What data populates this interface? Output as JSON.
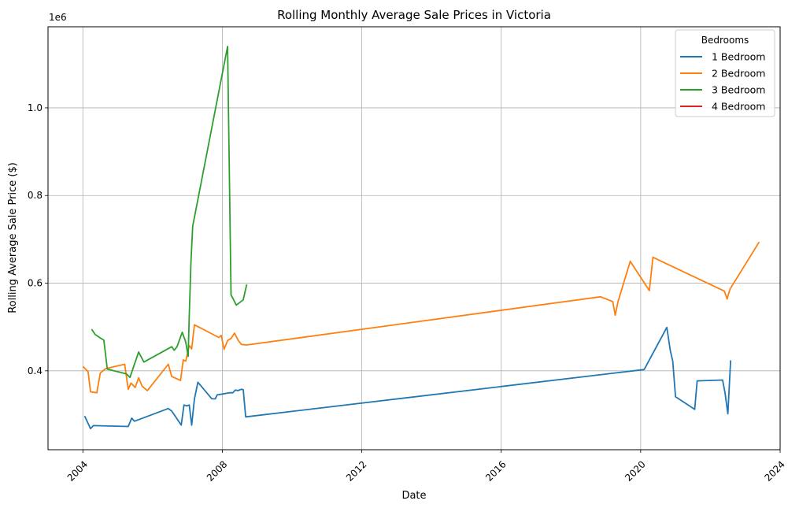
{
  "chart_data": {
    "type": "line",
    "title": "Rolling Monthly Average Sale Prices in Victoria",
    "xlabel": "Date",
    "ylabel": "Rolling Average Sale Price ($)",
    "y_multiplier_label": "1e6",
    "xlim": [
      2003.0,
      2024.0
    ],
    "ylim": [
      220000,
      1185000
    ],
    "x_ticks": [
      2004,
      2008,
      2012,
      2016,
      2020,
      2024
    ],
    "x_tick_labels": [
      "2004",
      "2008",
      "2012",
      "2016",
      "2020",
      "2024"
    ],
    "y_ticks": [
      400000,
      600000,
      800000,
      1000000
    ],
    "y_tick_labels": [
      "0.4",
      "0.6",
      "0.8",
      "1.0"
    ],
    "grid": true,
    "legend_title": "Bedrooms",
    "legend_position": "upper right",
    "series": [
      {
        "name": "1 Bedroom",
        "color": "#1f77b4",
        "x": [
          2004.05,
          2004.22,
          2004.3,
          2005.3,
          2005.4,
          2005.48,
          2006.45,
          2006.55,
          2006.67,
          2006.82,
          2006.9,
          2006.98,
          2007.05,
          2007.12,
          2007.2,
          2007.3,
          2007.7,
          2007.8,
          2007.85,
          2008.0,
          2008.2,
          2008.3,
          2008.37,
          2008.45,
          2008.55,
          2008.6,
          2008.67,
          2020.1,
          2020.75,
          2020.85,
          2020.92,
          2021.0,
          2021.55,
          2021.62,
          2022.35,
          2022.42,
          2022.5,
          2022.58
        ],
        "values": [
          297000,
          268000,
          275000,
          273000,
          292000,
          285000,
          314000,
          308000,
          294000,
          276000,
          322000,
          320000,
          322000,
          276000,
          336000,
          374000,
          336000,
          336000,
          345000,
          347000,
          350000,
          350000,
          356000,
          355000,
          358000,
          357000,
          295000,
          403000,
          499000,
          446000,
          422000,
          341000,
          312000,
          377000,
          379000,
          350000,
          302000,
          424000
        ]
      },
      {
        "name": "2 Bedroom",
        "color": "#ff7f0e",
        "x": [
          2004.0,
          2004.15,
          2004.22,
          2004.4,
          2004.5,
          2004.65,
          2005.2,
          2005.3,
          2005.38,
          2005.5,
          2005.6,
          2005.7,
          2005.85,
          2006.45,
          2006.55,
          2006.8,
          2006.88,
          2006.95,
          2007.05,
          2007.12,
          2007.2,
          2007.9,
          2007.97,
          2008.05,
          2008.15,
          2008.25,
          2008.35,
          2008.45,
          2008.55,
          2008.7,
          2018.85,
          2019.2,
          2019.27,
          2019.35,
          2019.7,
          2020.25,
          2020.35,
          2022.4,
          2022.48,
          2022.56,
          2023.4
        ],
        "values": [
          410000,
          398000,
          352000,
          350000,
          395000,
          405000,
          415000,
          358000,
          372000,
          362000,
          384000,
          365000,
          355000,
          415000,
          387000,
          378000,
          425000,
          422000,
          458000,
          450000,
          505000,
          476000,
          481000,
          449000,
          469000,
          474000,
          486000,
          470000,
          460000,
          459000,
          569000,
          558000,
          527000,
          558000,
          650000,
          583000,
          659000,
          582000,
          564000,
          586000,
          694000
        ]
      },
      {
        "name": "3 Bedroom",
        "color": "#2ca02c",
        "x": [
          2004.25,
          2004.35,
          2004.5,
          2004.6,
          2004.7,
          2005.25,
          2005.35,
          2005.6,
          2005.75,
          2006.55,
          2006.62,
          2006.7,
          2006.85,
          2006.95,
          2007.02,
          2007.05,
          2007.1,
          2007.15,
          2008.15,
          2008.25,
          2008.3,
          2008.4,
          2008.45,
          2008.6,
          2008.7
        ],
        "values": [
          495000,
          483000,
          475000,
          470000,
          404000,
          393000,
          385000,
          443000,
          420000,
          455000,
          447000,
          455000,
          488000,
          466000,
          433000,
          525000,
          650000,
          730000,
          1140000,
          573000,
          566000,
          550000,
          553000,
          562000,
          597000
        ]
      },
      {
        "name": "4 Bedroom",
        "color": "#d62728",
        "x": [],
        "values": []
      }
    ]
  }
}
